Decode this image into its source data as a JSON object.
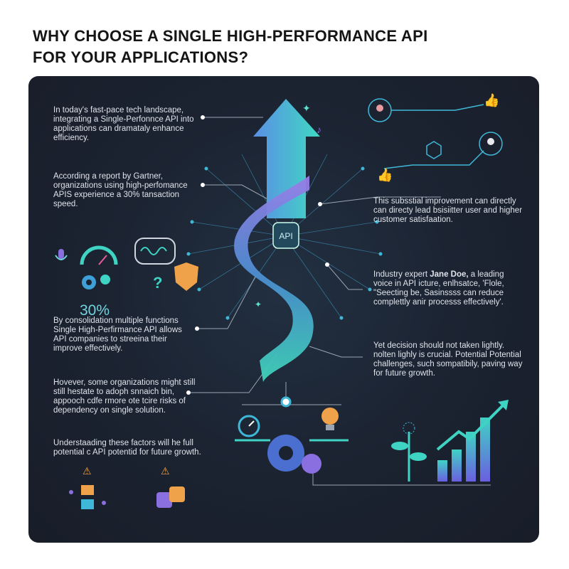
{
  "title": {
    "line1": "WHY CHOOSE A SINGLE HIGH-PERFORMANCE API",
    "line2": "FOR YOUR APPLICATIONS?"
  },
  "left_blocks": [
    {
      "text": "In today's fast-pace tech landscape, integrating a Single-Perfonnce API into applications can dramataly enhance efficiency."
    },
    {
      "text": "According a report by Gartner, organizations using high-perfomance APIS experience a 30% tansaction speed."
    },
    {
      "text": "By consolidation multiple functions Single High-Perfirmance API allows API companies to streeina their improve effectively."
    },
    {
      "text": "Hovever, some organizations might still still hestate to adoph snnaich bin, appooch cdfe rmore ote tcire risks of dependency on single solution."
    },
    {
      "text": "Understaading these factors will he full potential c API potentid for future growth."
    }
  ],
  "right_blocks": [
    {
      "text": "This subsstial improvement can directly can directy lead bsisiitter user and higher customer satisfaation."
    },
    {
      "prefix": "Industry expert ",
      "bold": "Jane Doe,",
      "text": " a leading voice in API icture, enlhsatce, 'Flole, \"Seecting be, Sasinssss can reduce complettly anir processs effectively'."
    },
    {
      "text": "Yet decision should not taken lightly. nolten lighly is crucial. Potential Potential challenges, such sompatibily, paving way for future growth."
    }
  ],
  "center": {
    "api_label": "API"
  },
  "stat": {
    "value": "30%"
  },
  "icons": [
    "microphone-icon",
    "gauge-icon",
    "gears-icon",
    "speech-bubble-waveform-icon",
    "question-mark-icon",
    "broken-shield-icon",
    "user-network-icon",
    "thumbs-up-icon",
    "stopwatch-icon",
    "gear-icon",
    "lightbulb-icon",
    "plant-icon",
    "growth-chart-icon",
    "warning-icon",
    "cubes-icon",
    "puzzle-icon"
  ],
  "colors": {
    "background": "#1b2230",
    "teal": "#3fd3c4",
    "purple": "#8a6fe0",
    "blue": "#4a8fe0",
    "orange": "#f0a24a",
    "text": "#dfe3ea"
  }
}
